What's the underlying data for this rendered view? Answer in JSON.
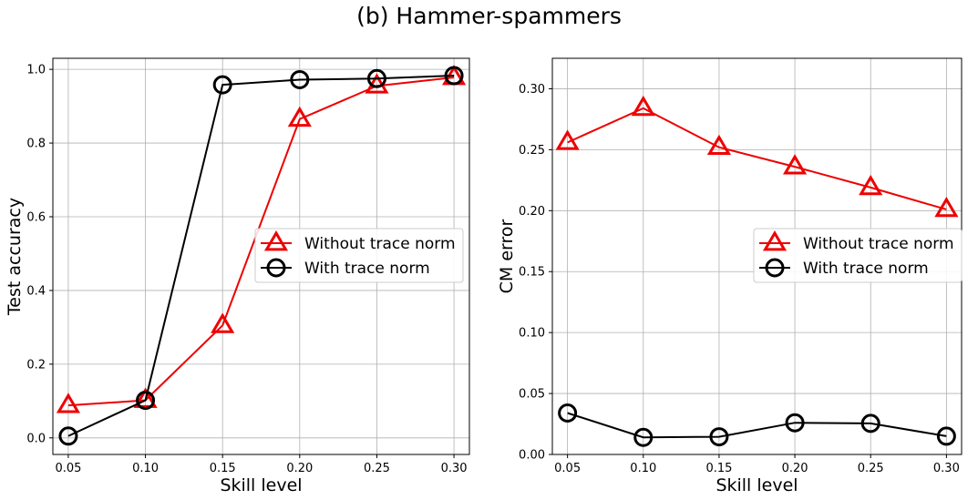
{
  "figure_title": "(b) Hammer-spammers",
  "chart_data": [
    {
      "type": "line",
      "title": "",
      "xlabel": "Skill level",
      "ylabel": "Test accuracy",
      "x": [
        0.05,
        0.1,
        0.15,
        0.2,
        0.25,
        0.3
      ],
      "x_tick_labels": [
        "0.05",
        "0.10",
        "0.15",
        "0.20",
        "0.25",
        "0.30"
      ],
      "y_ticks": [
        0.0,
        0.2,
        0.4,
        0.6,
        0.8,
        1.0
      ],
      "y_tick_labels": [
        "0.0",
        "0.2",
        "0.4",
        "0.6",
        "0.8",
        "1.0"
      ],
      "xlim": [
        0.04,
        0.31
      ],
      "ylim": [
        -0.045,
        1.03
      ],
      "grid": true,
      "legend_position": "center-right",
      "series": [
        {
          "name": "Without trace norm",
          "color": "#ee0000",
          "marker": "triangle",
          "values": [
            0.088,
            0.102,
            0.305,
            0.865,
            0.955,
            0.978
          ]
        },
        {
          "name": "With trace norm",
          "color": "#000000",
          "marker": "circle",
          "values": [
            0.005,
            0.102,
            0.958,
            0.972,
            0.975,
            0.983
          ]
        }
      ]
    },
    {
      "type": "line",
      "title": "",
      "xlabel": "Skill level",
      "ylabel": "CM error",
      "x": [
        0.05,
        0.1,
        0.15,
        0.2,
        0.25,
        0.3
      ],
      "x_tick_labels": [
        "0.05",
        "0.10",
        "0.15",
        "0.20",
        "0.25",
        "0.30"
      ],
      "y_ticks": [
        0.0,
        0.05,
        0.1,
        0.15,
        0.2,
        0.25,
        0.3
      ],
      "y_tick_labels": [
        "0.00",
        "0.05",
        "0.10",
        "0.15",
        "0.20",
        "0.25",
        "0.30"
      ],
      "xlim": [
        0.04,
        0.31
      ],
      "ylim": [
        0.0,
        0.325
      ],
      "grid": true,
      "legend_position": "center-right",
      "series": [
        {
          "name": "Without trace norm",
          "color": "#ee0000",
          "marker": "triangle",
          "values": [
            0.256,
            0.284,
            0.252,
            0.236,
            0.219,
            0.201
          ]
        },
        {
          "name": "With trace norm",
          "color": "#000000",
          "marker": "circle",
          "values": [
            0.034,
            0.014,
            0.0145,
            0.026,
            0.0255,
            0.015
          ]
        }
      ]
    }
  ]
}
